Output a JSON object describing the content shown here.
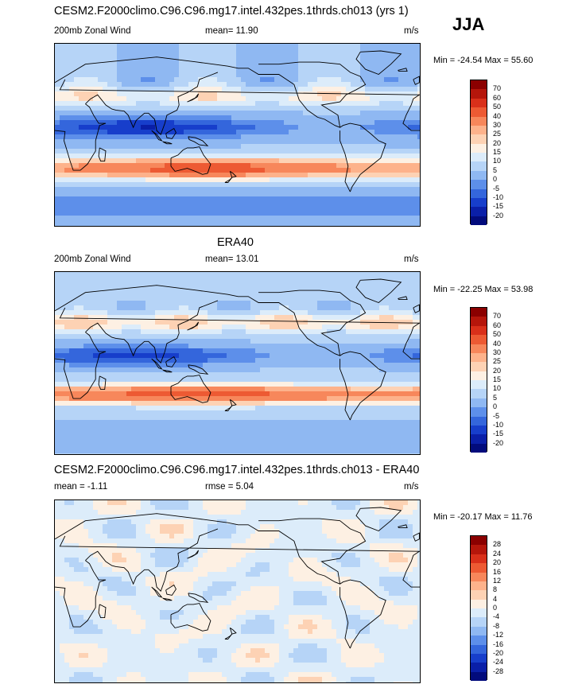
{
  "season": "JJA",
  "panels": [
    {
      "title": "CESM2.F2000climo.C96.C96.mg17.intel.432pes.1thrds.ch013 (yrs 1)",
      "left_label": "200mb Zonal Wind",
      "center_label": "mean=  11.90",
      "units": "m/s",
      "minmax": "Min = -24.54 Max =  55.60",
      "cbar_labels": [
        "70",
        "60",
        "50",
        "40",
        "30",
        "25",
        "20",
        "15",
        "10",
        "5",
        "0",
        "-5",
        "-10",
        "-15",
        "-20"
      ],
      "cbar_colors": [
        "#8b0000",
        "#b5160b",
        "#d9301a",
        "#ed5a33",
        "#f7875b",
        "#fdb28b",
        "#fdd2b4",
        "#fdf0e3",
        "#dcecfa",
        "#b6d4f7",
        "#8fb8f2",
        "#5d8fea",
        "#3466dc",
        "#173ecb",
        "#0a1fa8",
        "#020b7c"
      ]
    },
    {
      "title": "ERA40",
      "left_label": "200mb Zonal Wind",
      "center_label": "mean=  13.01",
      "units": "m/s",
      "minmax": "Min = -22.25 Max =  53.98",
      "cbar_labels": [
        "70",
        "60",
        "50",
        "40",
        "30",
        "25",
        "20",
        "15",
        "10",
        "5",
        "0",
        "-5",
        "-10",
        "-15",
        "-20"
      ],
      "cbar_colors": [
        "#8b0000",
        "#b5160b",
        "#d9301a",
        "#ed5a33",
        "#f7875b",
        "#fdb28b",
        "#fdd2b4",
        "#fdf0e3",
        "#dcecfa",
        "#b6d4f7",
        "#8fb8f2",
        "#5d8fea",
        "#3466dc",
        "#173ecb",
        "#0a1fa8",
        "#020b7c"
      ]
    },
    {
      "title": "CESM2.F2000climo.C96.C96.mg17.intel.432pes.1thrds.ch013 - ERA40",
      "left_label": "mean =  -1.11",
      "center_label": "rmse =  5.04",
      "units": "m/s",
      "minmax": "Min = -20.17 Max =  11.76",
      "cbar_labels": [
        "28",
        "24",
        "20",
        "16",
        "12",
        "8",
        "4",
        "0",
        "-4",
        "-8",
        "-12",
        "-16",
        "-20",
        "-24",
        "-28"
      ],
      "cbar_colors": [
        "#8b0000",
        "#b5160b",
        "#d9301a",
        "#ed5a33",
        "#f7875b",
        "#fdb28b",
        "#fdd2b4",
        "#fdf0e3",
        "#dcecfa",
        "#b6d4f7",
        "#8fb8f2",
        "#5d8fea",
        "#3466dc",
        "#173ecb",
        "#0a1fa8",
        "#020b7c"
      ]
    }
  ]
}
